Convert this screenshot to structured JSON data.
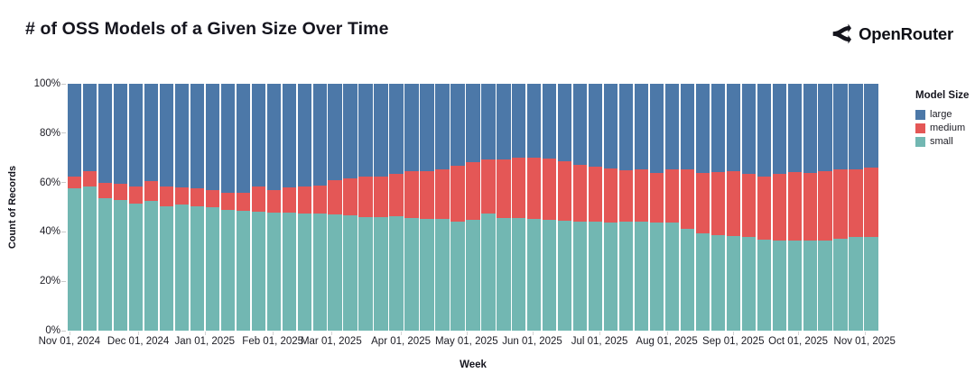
{
  "header": {
    "title": "# of OSS Models of a Given Size Over Time",
    "brand": "OpenRouter"
  },
  "chart_data": {
    "type": "bar",
    "variant": "stacked-100-percent",
    "title": "# of OSS Models of a Given Size Over Time",
    "xlabel": "Week",
    "ylabel": "Count of Records",
    "ylim": [
      0,
      100
    ],
    "grid": false,
    "y_ticks": [
      0,
      20,
      40,
      60,
      80,
      100
    ],
    "y_tick_labels": [
      "0%",
      "20%",
      "40%",
      "60%",
      "80%",
      "100%"
    ],
    "x_tick_labels": [
      "Nov 01, 2024",
      "Dec 01, 2024",
      "Jan 01, 2025",
      "Feb 01, 2025",
      "Mar 01, 2025",
      "Apr 01, 2025",
      "May 01, 2025",
      "Jun 01, 2025",
      "Jul 01, 2025",
      "Aug 01, 2025",
      "Sep 01, 2025",
      "Oct 01, 2025",
      "Nov 01, 2025"
    ],
    "x_tick_positions": [
      0.002,
      0.087,
      0.169,
      0.253,
      0.325,
      0.411,
      0.492,
      0.573,
      0.656,
      0.739,
      0.821,
      0.901,
      0.983
    ],
    "legend": {
      "title": "Model Size",
      "position": "right",
      "entries": [
        {
          "key": "large",
          "label": "large",
          "color": "#4c78a8"
        },
        {
          "key": "medium",
          "label": "medium",
          "color": "#e45756"
        },
        {
          "key": "small",
          "label": "small",
          "color": "#72b7b2"
        }
      ]
    },
    "colors": {
      "large": "#4c78a8",
      "medium": "#e45756",
      "small": "#72b7b2"
    },
    "stack_order_top_to_bottom": [
      "large",
      "medium",
      "small"
    ],
    "weeks": [
      {
        "small": 57.5,
        "medium": 5.0,
        "large": 37.5
      },
      {
        "small": 58.5,
        "medium": 6.0,
        "large": 35.5
      },
      {
        "small": 53.5,
        "medium": 6.5,
        "large": 40.0
      },
      {
        "small": 53.0,
        "medium": 6.5,
        "large": 40.5
      },
      {
        "small": 51.5,
        "medium": 7.0,
        "large": 41.5
      },
      {
        "small": 52.5,
        "medium": 8.0,
        "large": 39.5
      },
      {
        "small": 50.5,
        "medium": 8.0,
        "large": 41.5
      },
      {
        "small": 51.0,
        "medium": 7.0,
        "large": 42.0
      },
      {
        "small": 50.5,
        "medium": 7.0,
        "large": 42.5
      },
      {
        "small": 50.0,
        "medium": 7.0,
        "large": 43.0
      },
      {
        "small": 49.0,
        "medium": 7.0,
        "large": 44.0
      },
      {
        "small": 48.5,
        "medium": 7.5,
        "large": 44.0
      },
      {
        "small": 48.0,
        "medium": 10.5,
        "large": 41.5
      },
      {
        "small": 47.8,
        "medium": 9.2,
        "large": 43.0
      },
      {
        "small": 47.8,
        "medium": 10.2,
        "large": 42.0
      },
      {
        "small": 47.4,
        "medium": 11.0,
        "large": 41.6
      },
      {
        "small": 47.4,
        "medium": 11.4,
        "large": 41.2
      },
      {
        "small": 47.0,
        "medium": 14.0,
        "large": 39.0
      },
      {
        "small": 46.7,
        "medium": 15.0,
        "large": 38.3
      },
      {
        "small": 46.0,
        "medium": 16.4,
        "large": 37.6
      },
      {
        "small": 46.0,
        "medium": 16.4,
        "large": 37.6
      },
      {
        "small": 46.4,
        "medium": 17.1,
        "large": 36.5
      },
      {
        "small": 45.6,
        "medium": 19.0,
        "large": 35.4
      },
      {
        "small": 45.3,
        "medium": 19.3,
        "large": 35.4
      },
      {
        "small": 45.3,
        "medium": 20.0,
        "large": 34.7
      },
      {
        "small": 44.2,
        "medium": 22.6,
        "large": 33.2
      },
      {
        "small": 44.9,
        "medium": 23.3,
        "large": 31.8
      },
      {
        "small": 47.4,
        "medium": 21.9,
        "large": 30.7
      },
      {
        "small": 45.6,
        "medium": 23.7,
        "large": 30.7
      },
      {
        "small": 45.6,
        "medium": 24.5,
        "large": 29.9
      },
      {
        "small": 45.3,
        "medium": 24.8,
        "large": 29.9
      },
      {
        "small": 44.9,
        "medium": 24.8,
        "large": 30.3
      },
      {
        "small": 44.5,
        "medium": 24.1,
        "large": 31.4
      },
      {
        "small": 44.2,
        "medium": 23.0,
        "large": 32.8
      },
      {
        "small": 44.2,
        "medium": 22.2,
        "large": 33.6
      },
      {
        "small": 43.8,
        "medium": 21.9,
        "large": 34.3
      },
      {
        "small": 44.2,
        "medium": 20.8,
        "large": 35.0
      },
      {
        "small": 44.2,
        "medium": 21.1,
        "large": 34.7
      },
      {
        "small": 43.8,
        "medium": 20.1,
        "large": 36.1
      },
      {
        "small": 43.8,
        "medium": 21.5,
        "large": 34.7
      },
      {
        "small": 41.2,
        "medium": 24.3,
        "large": 34.5
      },
      {
        "small": 39.4,
        "medium": 24.5,
        "large": 36.1
      },
      {
        "small": 38.7,
        "medium": 25.5,
        "large": 35.8
      },
      {
        "small": 38.3,
        "medium": 26.3,
        "large": 35.4
      },
      {
        "small": 38.0,
        "medium": 25.5,
        "large": 36.5
      },
      {
        "small": 36.9,
        "medium": 25.5,
        "large": 37.6
      },
      {
        "small": 36.5,
        "medium": 27.0,
        "large": 36.5
      },
      {
        "small": 36.5,
        "medium": 27.7,
        "large": 35.8
      },
      {
        "small": 36.5,
        "medium": 27.4,
        "large": 36.1
      },
      {
        "small": 36.5,
        "medium": 28.1,
        "large": 35.4
      },
      {
        "small": 37.2,
        "medium": 28.1,
        "large": 34.7
      },
      {
        "small": 38.0,
        "medium": 27.5,
        "large": 34.5
      },
      {
        "small": 38.0,
        "medium": 28.0,
        "large": 34.0
      }
    ]
  }
}
